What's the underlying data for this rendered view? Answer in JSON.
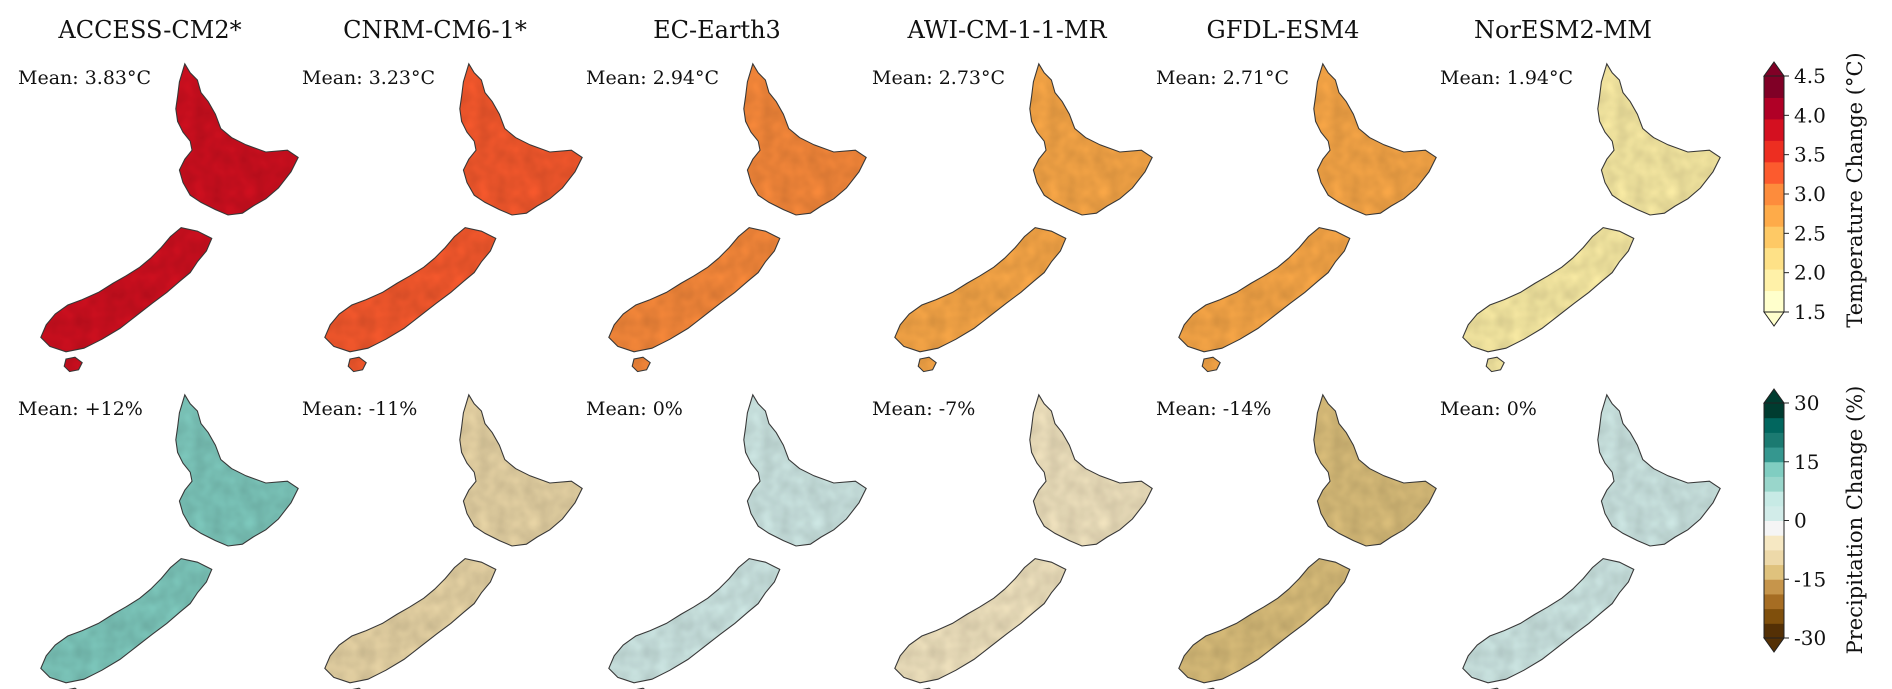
{
  "figure": {
    "models": [
      {
        "name": "ACCESS-CM2*",
        "temp_mean_label": "Mean: 3.83°C",
        "temp_mean": 3.83,
        "precip_mean_label": "Mean: +12%",
        "precip_mean": 12
      },
      {
        "name": "CNRM-CM6-1*",
        "temp_mean_label": "Mean: 3.23°C",
        "temp_mean": 3.23,
        "precip_mean_label": "Mean: -11%",
        "precip_mean": -11
      },
      {
        "name": "EC-Earth3",
        "temp_mean_label": "Mean: 2.94°C",
        "temp_mean": 2.94,
        "precip_mean_label": "Mean: 0%",
        "precip_mean": 0
      },
      {
        "name": "AWI-CM-1-1-MR",
        "temp_mean_label": "Mean: 2.73°C",
        "temp_mean": 2.73,
        "precip_mean_label": "Mean: -7%",
        "precip_mean": -7
      },
      {
        "name": "GFDL-ESM4",
        "temp_mean_label": "Mean: 2.71°C",
        "temp_mean": 2.71,
        "precip_mean_label": "Mean: -14%",
        "precip_mean": -14
      },
      {
        "name": "NorESM2-MM",
        "temp_mean_label": "Mean: 1.94°C",
        "temp_mean": 1.94,
        "precip_mean_label": "Mean: 0%",
        "precip_mean": 0
      }
    ],
    "temperature_colorbar": {
      "label": "Temperature Change (°C)",
      "ticks": [
        "1.5",
        "2.0",
        "2.5",
        "3.0",
        "3.5",
        "4.0",
        "4.5"
      ],
      "range": [
        1.5,
        4.5
      ],
      "colors": [
        "#ffffcc",
        "#fff1a8",
        "#fee187",
        "#fec965",
        "#feab49",
        "#fd8c3c",
        "#fc5b2e",
        "#ed2e21",
        "#d41020",
        "#b00026",
        "#800026"
      ]
    },
    "precipitation_colorbar": {
      "label": "Precipitation Change (%)",
      "ticks": [
        "-30",
        "-15",
        "0",
        "15",
        "30"
      ],
      "range": [
        -30,
        30
      ],
      "colors": [
        "#543005",
        "#7f4f0c",
        "#a66d23",
        "#c6954b",
        "#dfc27d",
        "#edd9a9",
        "#f6e8c3",
        "#f5f5f5",
        "#d2ece9",
        "#c7eae5",
        "#99d6cb",
        "#80cdc1",
        "#35978f",
        "#1b7a71",
        "#01665e",
        "#003c30"
      ]
    }
  }
}
